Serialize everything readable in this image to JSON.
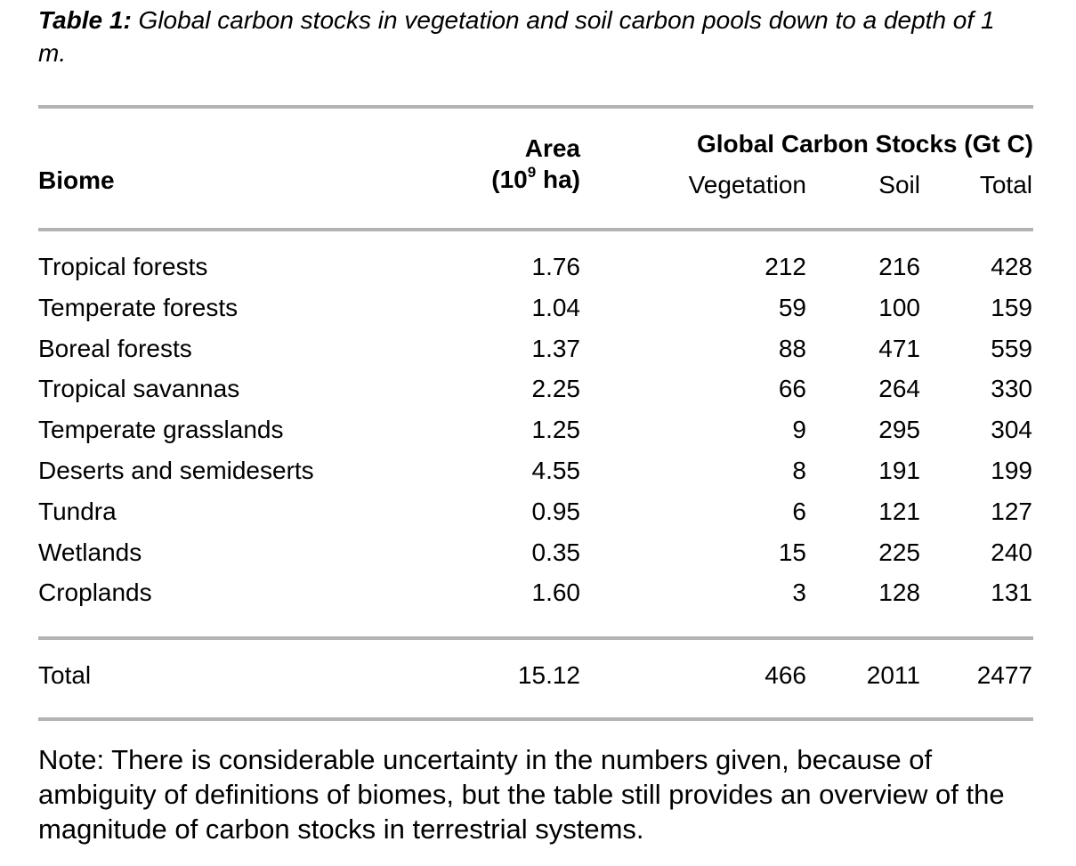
{
  "caption": {
    "label": "Table 1:",
    "text": " Global carbon stocks in vegetation and soil carbon pools down to a depth of 1 m."
  },
  "header": {
    "biome": "Biome",
    "area_line1": "Area",
    "area_prefix": "(10",
    "area_exponent": "9",
    "area_suffix": " ha)",
    "group_title": "Global Carbon Stocks (Gt C)",
    "vegetation": "Vegetation",
    "soil": "Soil",
    "total": "Total"
  },
  "rows": [
    {
      "biome": "Tropical forests",
      "area": "1.76",
      "vegetation": "212",
      "soil": "216",
      "total": "428"
    },
    {
      "biome": "Temperate forests",
      "area": "1.04",
      "vegetation": "59",
      "soil": "100",
      "total": "159"
    },
    {
      "biome": "Boreal forests",
      "area": "1.37",
      "vegetation": "88",
      "soil": "471",
      "total": "559"
    },
    {
      "biome": "Tropical savannas",
      "area": "2.25",
      "vegetation": "66",
      "soil": "264",
      "total": "330"
    },
    {
      "biome": "Temperate grasslands",
      "area": "1.25",
      "vegetation": "9",
      "soil": "295",
      "total": "304"
    },
    {
      "biome": "Deserts and semideserts",
      "area": "4.55",
      "vegetation": "8",
      "soil": "191",
      "total": "199"
    },
    {
      "biome": "Tundra",
      "area": "0.95",
      "vegetation": "6",
      "soil": "121",
      "total": "127"
    },
    {
      "biome": "Wetlands",
      "area": "0.35",
      "vegetation": "15",
      "soil": "225",
      "total": "240"
    },
    {
      "biome": "Croplands",
      "area": "1.60",
      "vegetation": "3",
      "soil": "128",
      "total": "131"
    }
  ],
  "total_row": {
    "biome": "Total",
    "area": "15.12",
    "vegetation": "466",
    "soil": "2011",
    "total": "2477"
  },
  "note": "Note: There is considerable uncertainty in the numbers given, because of ambiguity of definitions of biomes, but the table still provides an overview of the magnitude of carbon stocks in terrestrial systems.",
  "colors": {
    "rule": "#b3b3b3",
    "text": "#000000"
  }
}
